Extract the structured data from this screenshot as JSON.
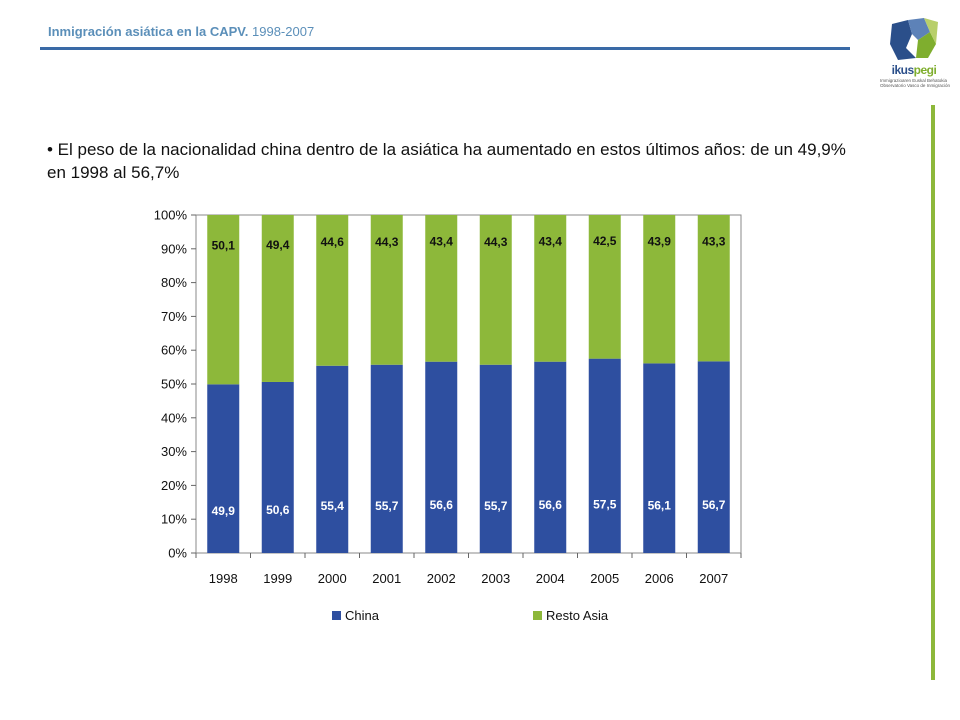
{
  "header": {
    "title": "Inmigración asiática  en la CAPV.",
    "years": "1998-2007"
  },
  "logo": {
    "name_part1": "ikus",
    "name_part2": "pegi",
    "subtitle_line1": "Immigrazioaren Euskal Behatokia",
    "subtitle_line2": "Observatorio Vasco de Inmigración",
    "icon": "ikuspegi-logo-icon"
  },
  "bullet_text": "• El peso de la nacionalidad china dentro de la asiática ha aumentado en estos últimos años: de un 49,9% en 1998 al 56,7%",
  "chart_data": {
    "type": "bar",
    "stacked": true,
    "percent_stacked": true,
    "categories": [
      "1998",
      "1999",
      "2000",
      "2001",
      "2002",
      "2003",
      "2004",
      "2005",
      "2006",
      "2007"
    ],
    "series": [
      {
        "name": "China",
        "color": "#2e4fa0",
        "values": [
          49.9,
          50.6,
          55.4,
          55.7,
          56.6,
          55.7,
          56.6,
          57.5,
          56.1,
          56.7
        ],
        "labels": [
          "49,9",
          "50,6",
          "55,4",
          "55,7",
          "56,6",
          "55,7",
          "56,6",
          "57,5",
          "56,1",
          "56,7"
        ]
      },
      {
        "name": "Resto Asia",
        "color": "#8db83a",
        "values": [
          50.1,
          49.4,
          44.6,
          44.3,
          43.4,
          44.3,
          43.4,
          42.5,
          43.9,
          43.3
        ],
        "labels": [
          "50,1",
          "49,4",
          "44,6",
          "44,3",
          "43,4",
          "44,3",
          "43,4",
          "42,5",
          "43,9",
          "43,3"
        ]
      }
    ],
    "ylim": [
      0,
      100
    ],
    "yticks": [
      "0%",
      "10%",
      "20%",
      "30%",
      "40%",
      "50%",
      "60%",
      "70%",
      "80%",
      "90%",
      "100%"
    ],
    "title": "",
    "xlabel": "",
    "ylabel": "",
    "grid": false,
    "legend": "bottom"
  }
}
